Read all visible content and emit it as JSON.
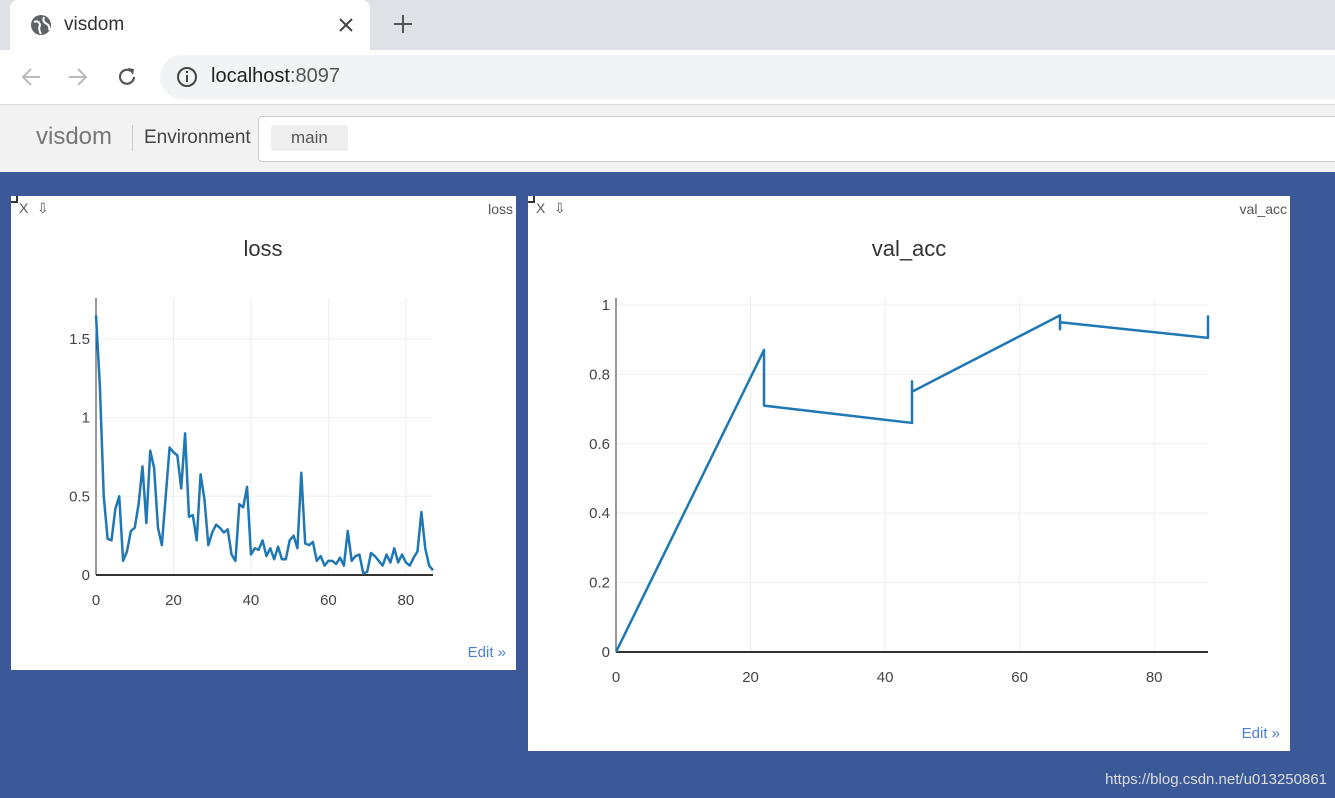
{
  "browser": {
    "tab_title": "visdom",
    "url_host": "localhost",
    "url_port": ":8097"
  },
  "app": {
    "brand": "visdom",
    "env_label": "Environment",
    "env": "main"
  },
  "panels": [
    {
      "close": "X",
      "download": "⇩",
      "label": "loss",
      "edit": "Edit »"
    },
    {
      "close": "X",
      "download": "⇩",
      "label": "val_acc",
      "edit": "Edit »"
    }
  ],
  "chart_data": [
    {
      "type": "line",
      "title": "loss",
      "color": "#1f77b4",
      "grid": true,
      "x": [
        0,
        1,
        2,
        3,
        4,
        5,
        6,
        7,
        8,
        9,
        10,
        11,
        12,
        13,
        14,
        15,
        16,
        17,
        18,
        19,
        20,
        21,
        22,
        23,
        24,
        25,
        26,
        27,
        28,
        29,
        30,
        31,
        32,
        33,
        34,
        35,
        36,
        37,
        38,
        39,
        40,
        41,
        42,
        43,
        44,
        45,
        46,
        47,
        48,
        49,
        50,
        51,
        52,
        53,
        54,
        55,
        56,
        57,
        58,
        59,
        60,
        61,
        62,
        63,
        64,
        65,
        66,
        67,
        68,
        69,
        70,
        71,
        72,
        73,
        74,
        75,
        76,
        77,
        78,
        79,
        80,
        81,
        82,
        83,
        84,
        85,
        86,
        87
      ],
      "values": [
        1.65,
        1.2,
        0.5,
        0.23,
        0.22,
        0.42,
        0.5,
        0.09,
        0.15,
        0.28,
        0.3,
        0.45,
        0.69,
        0.33,
        0.79,
        0.68,
        0.3,
        0.19,
        0.5,
        0.81,
        0.78,
        0.76,
        0.55,
        0.9,
        0.37,
        0.38,
        0.22,
        0.64,
        0.48,
        0.19,
        0.27,
        0.32,
        0.3,
        0.27,
        0.29,
        0.13,
        0.09,
        0.45,
        0.43,
        0.56,
        0.13,
        0.17,
        0.16,
        0.22,
        0.12,
        0.17,
        0.1,
        0.18,
        0.1,
        0.1,
        0.22,
        0.25,
        0.17,
        0.65,
        0.2,
        0.19,
        0.21,
        0.09,
        0.12,
        0.06,
        0.09,
        0.09,
        0.07,
        0.11,
        0.06,
        0.28,
        0.09,
        0.12,
        0.13,
        0.01,
        0.02,
        0.14,
        0.12,
        0.09,
        0.06,
        0.13,
        0.08,
        0.17,
        0.08,
        0.13,
        0.08,
        0.06,
        0.11,
        0.15,
        0.4,
        0.17,
        0.06,
        0.03
      ],
      "xlim": [
        0,
        87
      ],
      "ylim": [
        0,
        1.76
      ],
      "xticks": [
        0,
        20,
        40,
        60,
        80
      ],
      "yticks": [
        0,
        0.5,
        1,
        1.5
      ]
    },
    {
      "type": "line",
      "title": "val_acc",
      "color": "#1f77b4",
      "grid": true,
      "x": [
        0,
        22,
        22,
        44,
        44,
        44,
        66,
        66,
        66,
        88,
        88
      ],
      "values": [
        0,
        0.87,
        0.71,
        0.66,
        0.78,
        0.75,
        0.97,
        0.93,
        0.95,
        0.905,
        0.97
      ],
      "xlim": [
        0,
        88
      ],
      "ylim": [
        0,
        1.02
      ],
      "xticks": [
        0,
        20,
        40,
        60,
        80
      ],
      "yticks": [
        0,
        0.2,
        0.4,
        0.6,
        0.8,
        1
      ]
    }
  ],
  "watermark": "https://blog.csdn.net/u013250861"
}
